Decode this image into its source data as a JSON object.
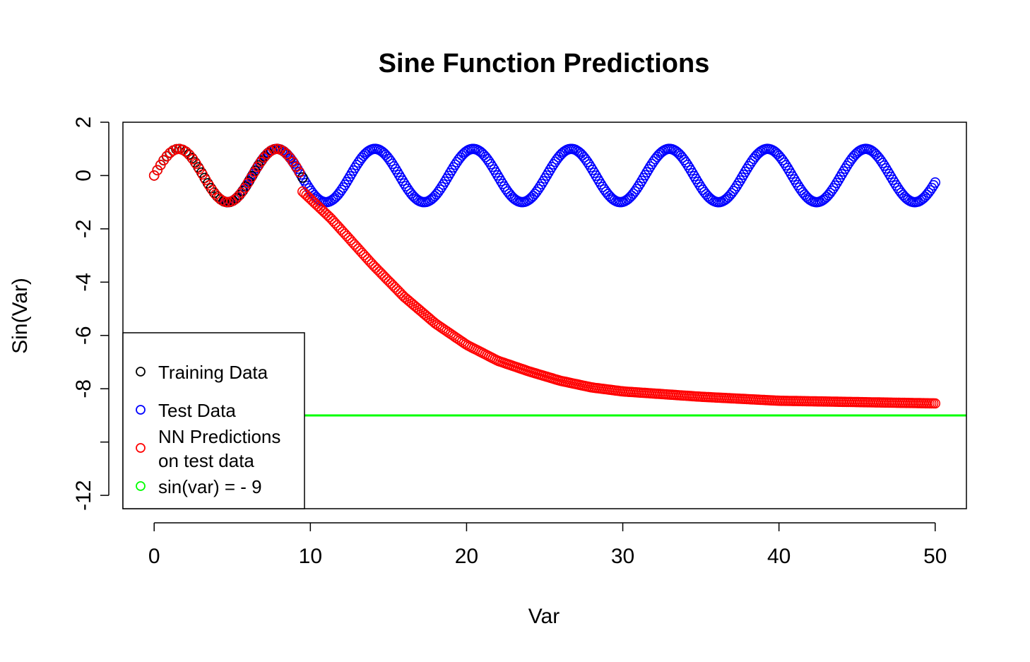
{
  "chart_data": {
    "type": "scatter",
    "title": "Sine Function Predictions",
    "xlabel": "Var",
    "ylabel": "Sin(Var)",
    "xlim": [
      -2,
      52
    ],
    "ylim": [
      -12.5,
      2.0
    ],
    "x_ticks": [
      0,
      10,
      20,
      30,
      40,
      50
    ],
    "y_ticks": [
      -12,
      -10,
      -8,
      -6,
      -4,
      -2,
      0,
      2
    ],
    "y_tick_labels": [
      "-12",
      "",
      "-8",
      "-6",
      "-4",
      "-2",
      "0",
      "2"
    ],
    "grid": false,
    "legend_position": "bottom-left",
    "series": [
      {
        "name": "Training Data",
        "color": "#000000",
        "marker": "open-circle",
        "x_range": [
          0,
          9.5
        ],
        "function": "sin(x)",
        "n_points": 48
      },
      {
        "name": "Test Data",
        "color": "#0000ff",
        "marker": "open-circle",
        "x_range": [
          4.5,
          50
        ],
        "function": "sin(x)",
        "n_points": 420
      },
      {
        "name": "NN Predictions\non test data",
        "color": "#ff0000",
        "marker": "open-circle",
        "segments": [
          {
            "x_range": [
              0,
              9.3
            ],
            "function": "sin(x)"
          },
          {
            "x_range": [
              9.5,
              50
            ],
            "description": "decays from about -0.6 at x=9.5 to about -8.55 at x=50",
            "points": [
              [
                9.5,
                -0.6
              ],
              [
                11.3,
                -1.6
              ],
              [
                12,
                -2.05
              ],
              [
                14,
                -3.35
              ],
              [
                16,
                -4.55
              ],
              [
                18,
                -5.55
              ],
              [
                20,
                -6.35
              ],
              [
                22,
                -6.95
              ],
              [
                24,
                -7.35
              ],
              [
                26,
                -7.7
              ],
              [
                28,
                -7.95
              ],
              [
                30,
                -8.1
              ],
              [
                35,
                -8.3
              ],
              [
                40,
                -8.45
              ],
              [
                45,
                -8.5
              ],
              [
                50,
                -8.55
              ]
            ]
          }
        ]
      },
      {
        "name": "sin(var) = - 9",
        "color": "#00ff00",
        "type": "hline",
        "y": -9
      }
    ]
  }
}
